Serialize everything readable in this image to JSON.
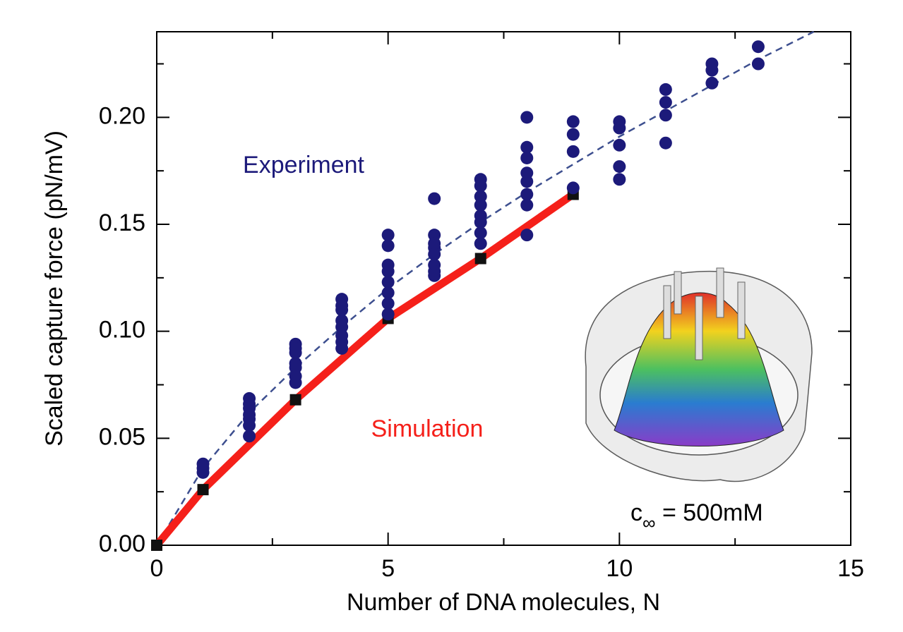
{
  "chart_data": {
    "type": "scatter",
    "x_label": "Number of DNA molecules, N",
    "y_label": "Scaled capture force (pN/mV)",
    "xlim": [
      0,
      15
    ],
    "ylim": [
      0,
      0.24
    ],
    "xticks": [
      0,
      5,
      10,
      15
    ],
    "xminor": [
      2.5,
      7.5,
      12.5
    ],
    "yticks": [
      {
        "value": 0,
        "label": "0.00"
      },
      {
        "value": 0.05,
        "label": "0.05"
      },
      {
        "value": 0.1,
        "label": "0.10"
      },
      {
        "value": 0.15,
        "label": "0.15"
      },
      {
        "value": 0.2,
        "label": "0.20"
      }
    ],
    "yminor": [
      0.025,
      0.075,
      0.125,
      0.175,
      0.225
    ],
    "series": [
      {
        "name": "Experiment",
        "style": "points",
        "color": "#1c1a7a",
        "x": [
          1,
          1,
          1,
          2,
          2,
          2,
          2,
          2,
          2,
          2,
          3,
          3,
          3,
          3,
          3,
          3,
          3,
          4,
          4,
          4,
          4,
          4,
          4,
          4,
          4,
          5,
          5,
          5,
          5,
          5,
          5,
          5,
          5,
          6,
          6,
          6,
          6,
          6,
          6,
          6,
          6,
          7,
          7,
          7,
          7,
          7,
          7,
          7,
          7,
          8,
          8,
          8,
          8,
          8,
          8,
          8,
          8,
          9,
          9,
          9,
          9,
          10,
          10,
          10,
          10,
          10,
          11,
          11,
          11,
          11,
          12,
          12,
          12,
          13,
          13
        ],
        "values": [
          0.038,
          0.036,
          0.034,
          0.0686,
          0.066,
          0.064,
          0.061,
          0.059,
          0.056,
          0.051,
          0.094,
          0.092,
          0.09,
          0.085,
          0.083,
          0.079,
          0.076,
          0.115,
          0.112,
          0.11,
          0.105,
          0.102,
          0.098,
          0.095,
          0.092,
          0.145,
          0.14,
          0.131,
          0.128,
          0.123,
          0.118,
          0.113,
          0.108,
          0.162,
          0.145,
          0.141,
          0.139,
          0.136,
          0.131,
          0.128,
          0.126,
          0.171,
          0.168,
          0.163,
          0.159,
          0.154,
          0.151,
          0.146,
          0.141,
          0.2,
          0.186,
          0.181,
          0.174,
          0.17,
          0.164,
          0.159,
          0.145,
          0.198,
          0.192,
          0.184,
          0.167,
          0.198,
          0.195,
          0.187,
          0.177,
          0.171,
          0.213,
          0.207,
          0.201,
          0.188,
          0.225,
          0.222,
          0.216,
          0.233,
          0.225
        ]
      },
      {
        "name": "Simulation",
        "style": "line-squares",
        "color": "#f5201a",
        "marker_color": "#111111",
        "x": [
          0,
          1,
          3,
          5,
          7,
          9
        ],
        "values": [
          0,
          0.026,
          0.068,
          0.106,
          0.134,
          0.164
        ]
      },
      {
        "style": "dashed",
        "color": "#3d4f8f",
        "x": [
          0,
          1,
          2,
          3,
          4,
          5,
          6,
          7,
          8,
          9,
          10,
          11,
          12,
          13,
          14.2
        ],
        "values": [
          0,
          0.036,
          0.062,
          0.083,
          0.102,
          0.12,
          0.136,
          0.151,
          0.165,
          0.178,
          0.191,
          0.203,
          0.215,
          0.227,
          0.24
        ]
      }
    ],
    "annotation": {
      "base": "c",
      "subscript": "∞",
      "text": " = 500mM"
    }
  }
}
